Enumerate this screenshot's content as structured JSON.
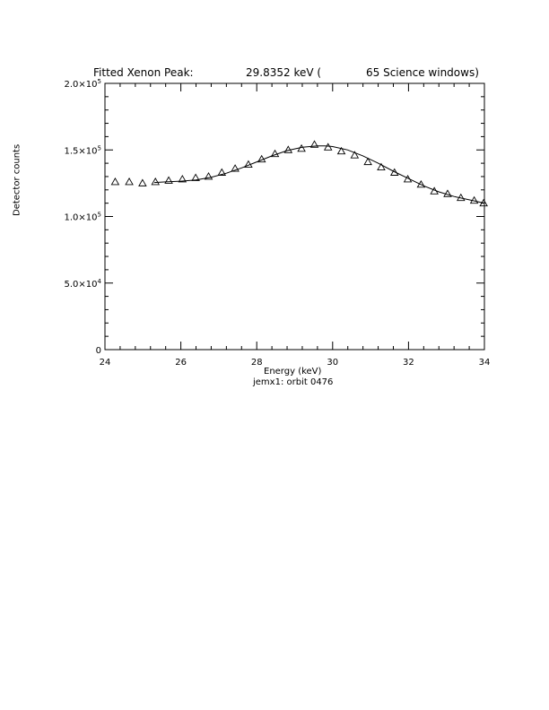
{
  "chart_data": {
    "type": "scatter",
    "title": {
      "part1": "Fitted Xenon Peak:",
      "part2": "29.8352 keV (",
      "part3": "65 Science windows)"
    },
    "xlabel": "Energy (keV)",
    "ylabel": "Detector counts",
    "footer": "jemx1: orbit 0476",
    "xlim": [
      24,
      34
    ],
    "ylim": [
      0,
      200000
    ],
    "xticks": [
      24,
      26,
      28,
      30,
      32,
      34
    ],
    "xtick_labels": [
      "24",
      "26",
      "28",
      "30",
      "32",
      "34"
    ],
    "yticks": [
      0,
      50000,
      100000,
      150000,
      200000
    ],
    "ytick_labels": [
      {
        "mant": "0",
        "exp": ""
      },
      {
        "mant": "5.0×10",
        "exp": "4"
      },
      {
        "mant": "1.0×10",
        "exp": "5"
      },
      {
        "mant": "1.5×10",
        "exp": "5"
      },
      {
        "mant": "2.0×10",
        "exp": "5"
      }
    ],
    "grid": false,
    "series": [
      {
        "marker": "triangle",
        "x": [
          24.27,
          24.64,
          24.99,
          25.33,
          25.68,
          26.04,
          26.39,
          26.73,
          27.08,
          27.43,
          27.78,
          28.13,
          28.48,
          28.83,
          29.18,
          29.52,
          29.88,
          30.23,
          30.58,
          30.93,
          31.28,
          31.63,
          31.98,
          32.33,
          32.68,
          33.03,
          33.38,
          33.73,
          33.98
        ],
        "y": [
          126000,
          126000,
          125000,
          126000,
          127000,
          128000,
          129000,
          130000,
          133000,
          136000,
          139000,
          143000,
          147000,
          150000,
          151000,
          154000,
          152000,
          149000,
          146000,
          141000,
          137000,
          133000,
          128000,
          124000,
          119000,
          117000,
          114000,
          112000,
          110000
        ]
      },
      {
        "marker": "line",
        "x": [
          25.3,
          25.6,
          26.0,
          26.4,
          26.8,
          27.2,
          27.6,
          28.0,
          28.4,
          28.8,
          29.2,
          29.6,
          29.8,
          30.0,
          30.4,
          30.8,
          31.2,
          31.6,
          32.0,
          32.4,
          32.8,
          33.2,
          33.6,
          34.0
        ],
        "y": [
          125500,
          126000,
          126500,
          127500,
          129500,
          132500,
          136500,
          141000,
          145500,
          149500,
          152000,
          153000,
          153000,
          152500,
          150000,
          145500,
          140000,
          134000,
          128500,
          123000,
          118500,
          115000,
          112500,
          110000
        ]
      }
    ]
  }
}
